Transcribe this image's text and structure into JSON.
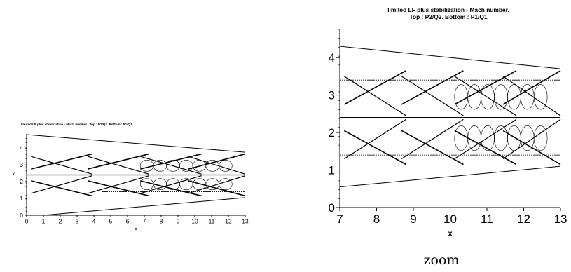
{
  "figure": {
    "caption": "zoom"
  },
  "chart_data": [
    {
      "type": "contour",
      "title": "limited LF plus stabilization - Mach number.  Top : P2/Q2. Bottom : P1/Q1",
      "xlabel": "x",
      "ylabel": "y",
      "xlim": [
        0,
        13
      ],
      "ylim": [
        0,
        4.8
      ],
      "xticks": [
        "0",
        "1",
        "2",
        "3",
        "4",
        "5",
        "6",
        "7",
        "8",
        "9",
        "10",
        "11",
        "12",
        "13"
      ],
      "yticks": [
        "0",
        "1",
        "2",
        "3",
        "4"
      ],
      "grid": false,
      "domain_top_boundary": [
        [
          0,
          4.8
        ],
        [
          13,
          3.75
        ]
      ],
      "domain_bottom_boundary": [
        [
          1,
          0
        ],
        [
          13,
          1.05
        ]
      ],
      "interfaces_y": [
        1.4,
        2.4,
        3.4
      ],
      "inlet_x": 4.5
    },
    {
      "type": "contour",
      "title": "limited LF plus stabilization - Mach number.\nTop : P2/Q2. Bottom : P1/Q1",
      "xlabel": "x",
      "ylabel": "",
      "xlim": [
        7,
        13
      ],
      "ylim": [
        0,
        4.75
      ],
      "xticks": [
        "7",
        "8",
        "9",
        "10",
        "11",
        "12",
        "13"
      ],
      "yticks": [
        "0",
        "1",
        "2",
        "3",
        "4"
      ],
      "grid": false,
      "domain_top_boundary": [
        [
          7,
          4.3
        ],
        [
          13,
          3.7
        ]
      ],
      "domain_bottom_boundary": [
        [
          7,
          0.55
        ],
        [
          13,
          1.1
        ]
      ],
      "interfaces_y": [
        1.4,
        2.4,
        3.4
      ]
    }
  ]
}
